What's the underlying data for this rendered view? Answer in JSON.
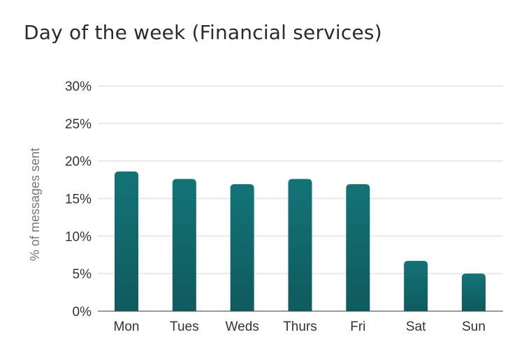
{
  "chart_data": {
    "type": "bar",
    "title": "Day of the week (Financial services)",
    "xlabel": "",
    "ylabel": "% of messages sent",
    "categories": [
      "Mon",
      "Tues",
      "Weds",
      "Thurs",
      "Fri",
      "Sat",
      "Sun"
    ],
    "values": [
      18.6,
      17.6,
      16.9,
      17.6,
      16.9,
      6.7,
      5.0
    ],
    "ylim": [
      0,
      30
    ],
    "yticks": [
      0,
      5,
      10,
      15,
      20,
      25,
      30
    ],
    "ytick_labels": [
      "0%",
      "5%",
      "10%",
      "15%",
      "20%",
      "25%",
      "30%"
    ],
    "grid": true,
    "legend": "none",
    "colors": {
      "bar_top": "#137377",
      "bar_bottom": "#0f5a5e",
      "grid": "#e3e3e3",
      "baseline": "#999999"
    }
  }
}
